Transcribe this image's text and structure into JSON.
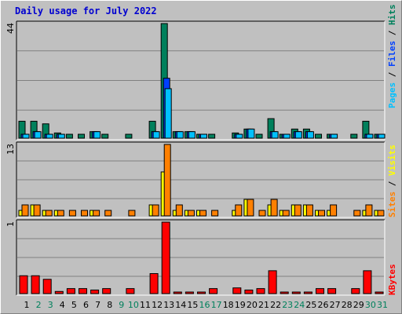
{
  "title": "Daily usage for July 2022",
  "legend_labels": {
    "pages": "Pages",
    "files": "Files",
    "hits": "Hits",
    "sites": "Sites",
    "visits": "Visits",
    "kbytes": "KBytes",
    "sep": " / "
  },
  "colors": {
    "hits": "#00805c",
    "files": "#0040ff",
    "pages": "#00c0ff",
    "visits": "#ffff00",
    "sites": "#ff8000",
    "kbytes": "#ff0000",
    "weekday_label": "#000000",
    "weekend_label": "#00805c"
  },
  "chart_data": [
    {
      "type": "bar",
      "panel": "hits-files-pages",
      "ylim": [
        0,
        44
      ],
      "ytick_label": "44",
      "categories": [
        "1",
        "2",
        "3",
        "4",
        "5",
        "6",
        "7",
        "8",
        "9",
        "10",
        "11",
        "12",
        "13",
        "14",
        "15",
        "16",
        "17",
        "18",
        "19",
        "20",
        "21",
        "22",
        "23",
        "24",
        "25",
        "26",
        "27",
        "28",
        "29",
        "30",
        "31"
      ],
      "series": [
        {
          "name": "Hits",
          "values": [
            6.5,
            6.5,
            5.5,
            2,
            1.5,
            1.5,
            2.5,
            1.5,
            0,
            1.5,
            0,
            6.5,
            44,
            2.5,
            2.5,
            1.5,
            1.5,
            0,
            2,
            3.5,
            1.5,
            7.5,
            1.5,
            3.5,
            3.5,
            1.5,
            1.5,
            0,
            1.5,
            6.5,
            1.5
          ]
        },
        {
          "name": "Files",
          "values": [
            1.5,
            2.5,
            1.5,
            1.5,
            0,
            0,
            2.5,
            0,
            0,
            0,
            0,
            2.5,
            23,
            2.5,
            2.5,
            1.5,
            0,
            0,
            1.5,
            3.5,
            0,
            2.5,
            1.5,
            2.5,
            2.5,
            0,
            1.5,
            0,
            0,
            1.5,
            1.5
          ]
        },
        {
          "name": "Pages",
          "values": [
            1.5,
            2.5,
            1.5,
            1.5,
            0,
            0,
            2.5,
            0,
            0,
            0,
            0,
            2.5,
            19,
            2.5,
            2.5,
            1.5,
            0,
            0,
            1.5,
            3.5,
            0,
            2.5,
            1.5,
            2.5,
            2.5,
            0,
            1.5,
            0,
            0,
            1.5,
            1.5
          ]
        }
      ]
    },
    {
      "type": "bar",
      "panel": "visits-sites",
      "ylim": [
        0,
        13
      ],
      "ytick_label": "13",
      "categories": [
        "1",
        "2",
        "3",
        "4",
        "5",
        "6",
        "7",
        "8",
        "9",
        "10",
        "11",
        "12",
        "13",
        "14",
        "15",
        "16",
        "17",
        "18",
        "19",
        "20",
        "21",
        "22",
        "23",
        "24",
        "25",
        "26",
        "27",
        "28",
        "29",
        "30",
        "31"
      ],
      "series": [
        {
          "name": "Visits",
          "values": [
            1,
            2,
            1,
            1,
            0,
            0,
            1,
            0,
            0,
            0,
            0,
            2,
            8,
            1,
            1,
            1,
            0,
            0,
            1,
            3,
            0,
            2,
            1,
            2,
            2,
            1,
            1,
            0,
            0,
            1,
            1
          ]
        },
        {
          "name": "Sites",
          "values": [
            2,
            2,
            1,
            1,
            1,
            1,
            1,
            1,
            0,
            1,
            0,
            2,
            13,
            2,
            1,
            1,
            1,
            0,
            2,
            3,
            1,
            3,
            1,
            2,
            2,
            1,
            2,
            0,
            1,
            2,
            1
          ]
        }
      ]
    },
    {
      "type": "bar",
      "panel": "kbytes",
      "ylim": [
        0,
        1
      ],
      "ytick_label": "1",
      "categories": [
        "1",
        "2",
        "3",
        "4",
        "5",
        "6",
        "7",
        "8",
        "9",
        "10",
        "11",
        "12",
        "13",
        "14",
        "15",
        "16",
        "17",
        "18",
        "19",
        "20",
        "21",
        "22",
        "23",
        "24",
        "25",
        "26",
        "27",
        "28",
        "29",
        "30",
        "31"
      ],
      "series": [
        {
          "name": "KBytes",
          "values": [
            0.25,
            0.25,
            0.2,
            0.03,
            0.07,
            0.07,
            0.05,
            0.07,
            0,
            0.07,
            0,
            0.28,
            1,
            0.02,
            0.02,
            0.02,
            0.07,
            0,
            0.08,
            0.05,
            0.07,
            0.32,
            0.02,
            0.02,
            0.02,
            0.07,
            0.07,
            0,
            0.07,
            0.32,
            0.02
          ]
        }
      ]
    }
  ],
  "day_labels": [
    "1",
    "2",
    "3",
    "4",
    "5",
    "6",
    "7",
    "8",
    "9",
    "10",
    "11",
    "12",
    "13",
    "14",
    "15",
    "16",
    "17",
    "18",
    "19",
    "20",
    "21",
    "22",
    "23",
    "24",
    "25",
    "26",
    "27",
    "28",
    "29",
    "30",
    "31"
  ],
  "weekend_days": [
    2,
    3,
    9,
    10,
    16,
    17,
    23,
    24,
    30,
    31
  ]
}
